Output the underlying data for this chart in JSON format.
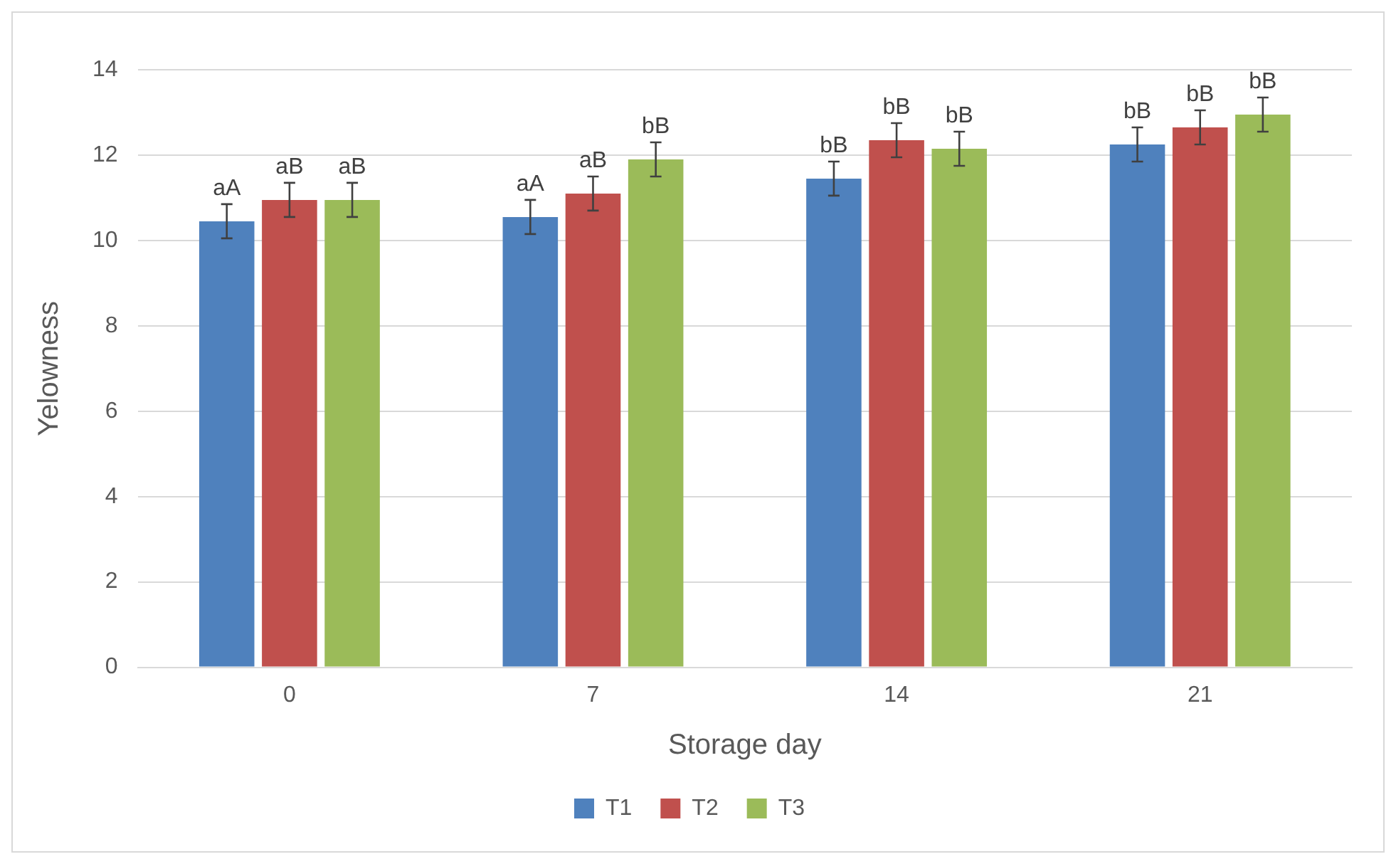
{
  "chart_data": {
    "type": "bar",
    "xlabel": "Storage day",
    "ylabel": "Yelowness",
    "categories": [
      "0",
      "7",
      "14",
      "21"
    ],
    "series": [
      {
        "name": "T1",
        "color": "#4f81bd",
        "values": [
          10.45,
          10.55,
          11.45,
          12.25
        ],
        "errors": [
          0.4,
          0.4,
          0.4,
          0.4
        ],
        "value_labels": [
          "aA",
          "aA",
          "bB",
          "bB"
        ]
      },
      {
        "name": "T2",
        "color": "#c0504d",
        "values": [
          10.95,
          11.1,
          12.35,
          12.65
        ],
        "errors": [
          0.4,
          0.4,
          0.4,
          0.4
        ],
        "value_labels": [
          "aB",
          "aB",
          "bB",
          "bB"
        ]
      },
      {
        "name": "T3",
        "color": "#9bbb59",
        "values": [
          10.95,
          11.9,
          12.15,
          12.95
        ],
        "errors": [
          0.4,
          0.4,
          0.4,
          0.4
        ],
        "value_labels": [
          "aB",
          "bB",
          "bB",
          "bB"
        ]
      }
    ],
    "ylim": [
      0,
      14
    ],
    "yticks": [
      0,
      2,
      4,
      6,
      8,
      10,
      12,
      14
    ],
    "grid": "y",
    "legend": "bottom"
  }
}
